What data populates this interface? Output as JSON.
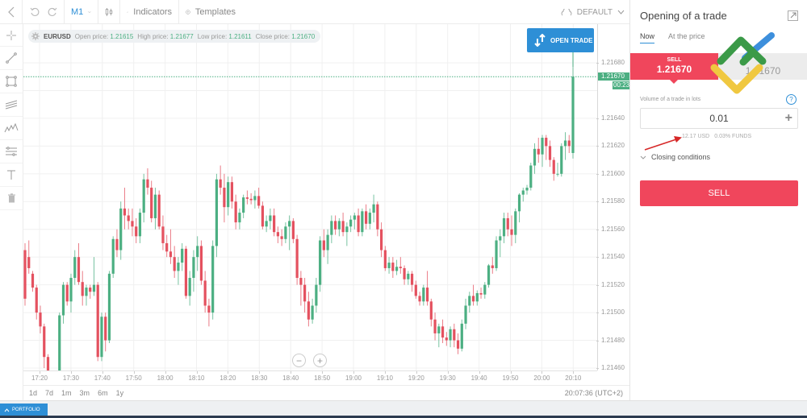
{
  "toolbar": {
    "timeframe": "M1",
    "indicators_label": "Indicators",
    "templates_label": "Templates",
    "theme_label": "DEFAULT"
  },
  "infobar": {
    "symbol": "EURUSD",
    "open_label": "Open price:",
    "open_value": "1.21615",
    "high_label": "High price:",
    "high_value": "1.21677",
    "low_label": "Low price:",
    "low_value": "1.21611",
    "close_label": "Close price:",
    "close_value": "1.21670"
  },
  "open_trade_label": "OPEN TRADE",
  "y_axis": {
    "ticks": [
      "1.21680",
      "1.21640",
      "1.21620",
      "1.21600",
      "1.21580",
      "1.21560",
      "1.21540",
      "1.21520",
      "1.21500",
      "1.21480",
      "1.21460"
    ],
    "current_price": "1.21670",
    "countdown": "00:23"
  },
  "x_axis": {
    "ticks": [
      "17:20",
      "17:30",
      "17:40",
      "17:50",
      "18:00",
      "18:10",
      "18:20",
      "18:30",
      "18:40",
      "18:50",
      "19:00",
      "19:10",
      "19:20",
      "19:30",
      "19:40",
      "19:50",
      "20:00",
      "20:10"
    ]
  },
  "periods": [
    "1d",
    "7d",
    "1m",
    "3m",
    "6m",
    "1y"
  ],
  "clock": "20:07:36 (UTC+2)",
  "footer": {
    "portfolio_label": "PORTFOLIO"
  },
  "panel": {
    "title": "Opening of a trade",
    "tabs": [
      "Now",
      "At the price"
    ],
    "sell_label": "SELL",
    "sell_price": "1.21670",
    "buy_price": "1.21670",
    "volume_label": "Volume of a trade in lots",
    "volume_value": "0.01",
    "margin_usd": "12.17 USD",
    "margin_funds": "0.03% FUNDS",
    "closing_conditions": "Closing conditions",
    "sell_button": "SELL"
  },
  "colors": {
    "up": "#4caf82",
    "down": "#e4515f",
    "accent": "#2e8fd6",
    "sell": "#f0465c"
  },
  "chart_data": {
    "type": "candlestick",
    "symbol": "EURUSD",
    "timeframe": "M1",
    "ylim": [
      1.21455,
      1.21685
    ],
    "x_start": "17:19",
    "x_end": "20:07",
    "candles": [
      [
        1.21545,
        1.2155,
        1.21505,
        1.2151
      ],
      [
        1.2154,
        1.21552,
        1.21528,
        1.21532
      ],
      [
        1.21528,
        1.2153,
        1.21515,
        1.21518
      ],
      [
        1.21518,
        1.2152,
        1.21495,
        1.215
      ],
      [
        1.215,
        1.21505,
        1.21485,
        1.2149
      ],
      [
        1.2149,
        1.21492,
        1.2146,
        1.21468
      ],
      [
        1.21468,
        1.2147,
        1.2145,
        1.21452
      ],
      [
        1.21452,
        1.21458,
        1.21448,
        1.2145
      ],
      [
        1.2145,
        1.21456,
        1.21448,
        1.21452
      ],
      [
        1.21452,
        1.215,
        1.2145,
        1.21498
      ],
      [
        1.21498,
        1.21522,
        1.21492,
        1.2152
      ],
      [
        1.2152,
        1.21522,
        1.21505,
        1.21508
      ],
      [
        1.21508,
        1.21528,
        1.215,
        1.21525
      ],
      [
        1.21525,
        1.21545,
        1.2152,
        1.2154
      ],
      [
        1.2154,
        1.2155,
        1.2152,
        1.21522
      ],
      [
        1.21522,
        1.2153,
        1.21505,
        1.21512
      ],
      [
        1.21512,
        1.2152,
        1.21505,
        1.21518
      ],
      [
        1.21518,
        1.2152,
        1.2151,
        1.21515
      ],
      [
        1.21515,
        1.2154,
        1.21512,
        1.2152
      ],
      [
        1.2152,
        1.21522,
        1.21465,
        1.21468
      ],
      [
        1.21468,
        1.215,
        1.21465,
        1.21497
      ],
      [
        1.21497,
        1.215,
        1.21472,
        1.2148
      ],
      [
        1.2148,
        1.2153,
        1.21478,
        1.21528
      ],
      [
        1.21528,
        1.21555,
        1.21525,
        1.21553
      ],
      [
        1.21553,
        1.2156,
        1.2154,
        1.21545
      ],
      [
        1.21545,
        1.2158,
        1.21538,
        1.21575
      ],
      [
        1.21575,
        1.2159,
        1.2156,
        1.2157
      ],
      [
        1.2157,
        1.21575,
        1.2156,
        1.21566
      ],
      [
        1.21566,
        1.21575,
        1.21555,
        1.21562
      ],
      [
        1.21562,
        1.21568,
        1.2155,
        1.21555
      ],
      [
        1.21555,
        1.21575,
        1.2155,
        1.21572
      ],
      [
        1.21572,
        1.216,
        1.21565,
        1.21596
      ],
      [
        1.21596,
        1.21604,
        1.21585,
        1.2159
      ],
      [
        1.2159,
        1.21595,
        1.21565,
        1.21568
      ],
      [
        1.21568,
        1.2159,
        1.2156,
        1.21585
      ],
      [
        1.21585,
        1.21588,
        1.2156,
        1.21562
      ],
      [
        1.21562,
        1.2157,
        1.21545,
        1.2155
      ],
      [
        1.2155,
        1.21556,
        1.2154,
        1.21544
      ],
      [
        1.21544,
        1.2156,
        1.21535,
        1.2154
      ],
      [
        1.2154,
        1.21548,
        1.21525,
        1.2153
      ],
      [
        1.2153,
        1.2154,
        1.2152,
        1.21536
      ],
      [
        1.21536,
        1.2155,
        1.2153,
        1.21546
      ],
      [
        1.21546,
        1.21548,
        1.2151,
        1.21512
      ],
      [
        1.21512,
        1.2153,
        1.21505,
        1.21525
      ],
      [
        1.21525,
        1.21545,
        1.21515,
        1.2154
      ],
      [
        1.2154,
        1.21555,
        1.2153,
        1.21548
      ],
      [
        1.21548,
        1.21552,
        1.2152,
        1.21523
      ],
      [
        1.21523,
        1.2153,
        1.215,
        1.21505
      ],
      [
        1.21505,
        1.2151,
        1.2149,
        1.215
      ],
      [
        1.215,
        1.21552,
        1.21495,
        1.21548
      ],
      [
        1.21548,
        1.216,
        1.2154,
        1.21596
      ],
      [
        1.21596,
        1.21606,
        1.21585,
        1.2159
      ],
      [
        1.2159,
        1.216,
        1.21565,
        1.21576
      ],
      [
        1.21576,
        1.21598,
        1.2157,
        1.21594
      ],
      [
        1.21594,
        1.21598,
        1.21575,
        1.2158
      ],
      [
        1.2158,
        1.21585,
        1.2156,
        1.21565
      ],
      [
        1.21565,
        1.21575,
        1.2156,
        1.21572
      ],
      [
        1.21572,
        1.21585,
        1.21568,
        1.21583
      ],
      [
        1.21583,
        1.21588,
        1.21578,
        1.21582
      ],
      [
        1.21582,
        1.21586,
        1.21578,
        1.21581
      ],
      [
        1.21581,
        1.21588,
        1.21575,
        1.21584
      ],
      [
        1.21584,
        1.2159,
        1.21575,
        1.21577
      ],
      [
        1.21577,
        1.2158,
        1.2156,
        1.21562
      ],
      [
        1.21562,
        1.2157,
        1.21558,
        1.21566
      ],
      [
        1.21566,
        1.21575,
        1.2156,
        1.2157
      ],
      [
        1.2157,
        1.21575,
        1.21555,
        1.21558
      ],
      [
        1.21558,
        1.21562,
        1.2155,
        1.21555
      ],
      [
        1.21555,
        1.2156,
        1.21548,
        1.21553
      ],
      [
        1.21553,
        1.21565,
        1.2155,
        1.21562
      ],
      [
        1.21562,
        1.2157,
        1.21545,
        1.21566
      ],
      [
        1.21566,
        1.21568,
        1.2155,
        1.21553
      ],
      [
        1.21553,
        1.21556,
        1.2152,
        1.21525
      ],
      [
        1.21525,
        1.2153,
        1.21505,
        1.2152
      ],
      [
        1.2152,
        1.21525,
        1.215,
        1.21508
      ],
      [
        1.21508,
        1.21515,
        1.2149,
        1.21495
      ],
      [
        1.21495,
        1.2151,
        1.21492,
        1.21505
      ],
      [
        1.21505,
        1.21525,
        1.215,
        1.2152
      ],
      [
        1.2152,
        1.21555,
        1.21515,
        1.21552
      ],
      [
        1.21552,
        1.2156,
        1.2154,
        1.21545
      ],
      [
        1.21545,
        1.2156,
        1.21535,
        1.21556
      ],
      [
        1.21556,
        1.2157,
        1.2155,
        1.21566
      ],
      [
        1.21566,
        1.2157,
        1.21556,
        1.2156
      ],
      [
        1.2156,
        1.21568,
        1.21555,
        1.21566
      ],
      [
        1.21566,
        1.21572,
        1.21555,
        1.21558
      ],
      [
        1.21558,
        1.21565,
        1.21548,
        1.21562
      ],
      [
        1.21562,
        1.2157,
        1.21558,
        1.21567
      ],
      [
        1.21567,
        1.21572,
        1.2156,
        1.2157
      ],
      [
        1.2157,
        1.21575,
        1.21555,
        1.21558
      ],
      [
        1.21558,
        1.21575,
        1.21555,
        1.21573
      ],
      [
        1.21573,
        1.21578,
        1.2156,
        1.21564
      ],
      [
        1.21564,
        1.21575,
        1.2156,
        1.21572
      ],
      [
        1.21572,
        1.21585,
        1.21565,
        1.21578
      ],
      [
        1.21578,
        1.2158,
        1.21555,
        1.2156
      ],
      [
        1.2156,
        1.21565,
        1.2154,
        1.21545
      ],
      [
        1.21545,
        1.21548,
        1.2153,
        1.21532
      ],
      [
        1.21532,
        1.2154,
        1.21528,
        1.21536
      ],
      [
        1.21536,
        1.2154,
        1.21525,
        1.2153
      ],
      [
        1.2153,
        1.21538,
        1.21527,
        1.21533
      ],
      [
        1.21533,
        1.2154,
        1.21528,
        1.21532
      ],
      [
        1.21532,
        1.21534,
        1.2152,
        1.21524
      ],
      [
        1.21524,
        1.2153,
        1.2152,
        1.21528
      ],
      [
        1.21528,
        1.2153,
        1.21515,
        1.2152
      ],
      [
        1.2152,
        1.21523,
        1.2151,
        1.21512
      ],
      [
        1.21512,
        1.21515,
        1.21505,
        1.21508
      ],
      [
        1.21508,
        1.2152,
        1.21505,
        1.21518
      ],
      [
        1.21518,
        1.2153,
        1.21505,
        1.21508
      ],
      [
        1.21508,
        1.2151,
        1.2149,
        1.21495
      ],
      [
        1.21495,
        1.215,
        1.2148,
        1.21485
      ],
      [
        1.21485,
        1.21492,
        1.21475,
        1.2149
      ],
      [
        1.2149,
        1.21495,
        1.21478,
        1.21482
      ],
      [
        1.21482,
        1.21486,
        1.21476,
        1.2148
      ],
      [
        1.2148,
        1.2149,
        1.21475,
        1.21488
      ],
      [
        1.21488,
        1.21492,
        1.21475,
        1.2148
      ],
      [
        1.2148,
        1.21485,
        1.2147,
        1.21474
      ],
      [
        1.21474,
        1.21495,
        1.21472,
        1.21492
      ],
      [
        1.21492,
        1.2151,
        1.21488,
        1.21505
      ],
      [
        1.21505,
        1.21515,
        1.215,
        1.21512
      ],
      [
        1.21512,
        1.2152,
        1.21505,
        1.21508
      ],
      [
        1.21508,
        1.21516,
        1.21505,
        1.21514
      ],
      [
        1.21514,
        1.21518,
        1.2151,
        1.21513
      ],
      [
        1.21513,
        1.21522,
        1.2151,
        1.2152
      ],
      [
        1.2152,
        1.21535,
        1.21518,
        1.21534
      ],
      [
        1.21534,
        1.2154,
        1.21528,
        1.21532
      ],
      [
        1.21532,
        1.21555,
        1.2153,
        1.21552
      ],
      [
        1.21552,
        1.2156,
        1.2154,
        1.21555
      ],
      [
        1.21555,
        1.21572,
        1.2155,
        1.21568
      ],
      [
        1.21568,
        1.21572,
        1.21555,
        1.2156
      ],
      [
        1.2156,
        1.2157,
        1.21548,
        1.21556
      ],
      [
        1.21556,
        1.21575,
        1.2155,
        1.21573
      ],
      [
        1.21573,
        1.21586,
        1.21565,
        1.21585
      ],
      [
        1.21585,
        1.2159,
        1.2158,
        1.21588
      ],
      [
        1.21588,
        1.21592,
        1.21585,
        1.2159
      ],
      [
        1.2159,
        1.21608,
        1.21588,
        1.21606
      ],
      [
        1.21606,
        1.21622,
        1.216,
        1.21618
      ],
      [
        1.21618,
        1.21626,
        1.21608,
        1.21614
      ],
      [
        1.21614,
        1.21628,
        1.21605,
        1.21626
      ],
      [
        1.21626,
        1.21628,
        1.2161,
        1.2162
      ],
      [
        1.2162,
        1.21624,
        1.21605,
        1.2161
      ],
      [
        1.2161,
        1.21612,
        1.21595,
        1.216
      ],
      [
        1.216,
        1.21608,
        1.21598,
        1.216
      ],
      [
        1.216,
        1.21622,
        1.21598,
        1.2162
      ],
      [
        1.2162,
        1.2163,
        1.2161,
        1.21624
      ],
      [
        1.21624,
        1.21628,
        1.21615,
        1.2162
      ],
      [
        1.21615,
        1.21677,
        1.21611,
        1.2167
      ]
    ]
  }
}
